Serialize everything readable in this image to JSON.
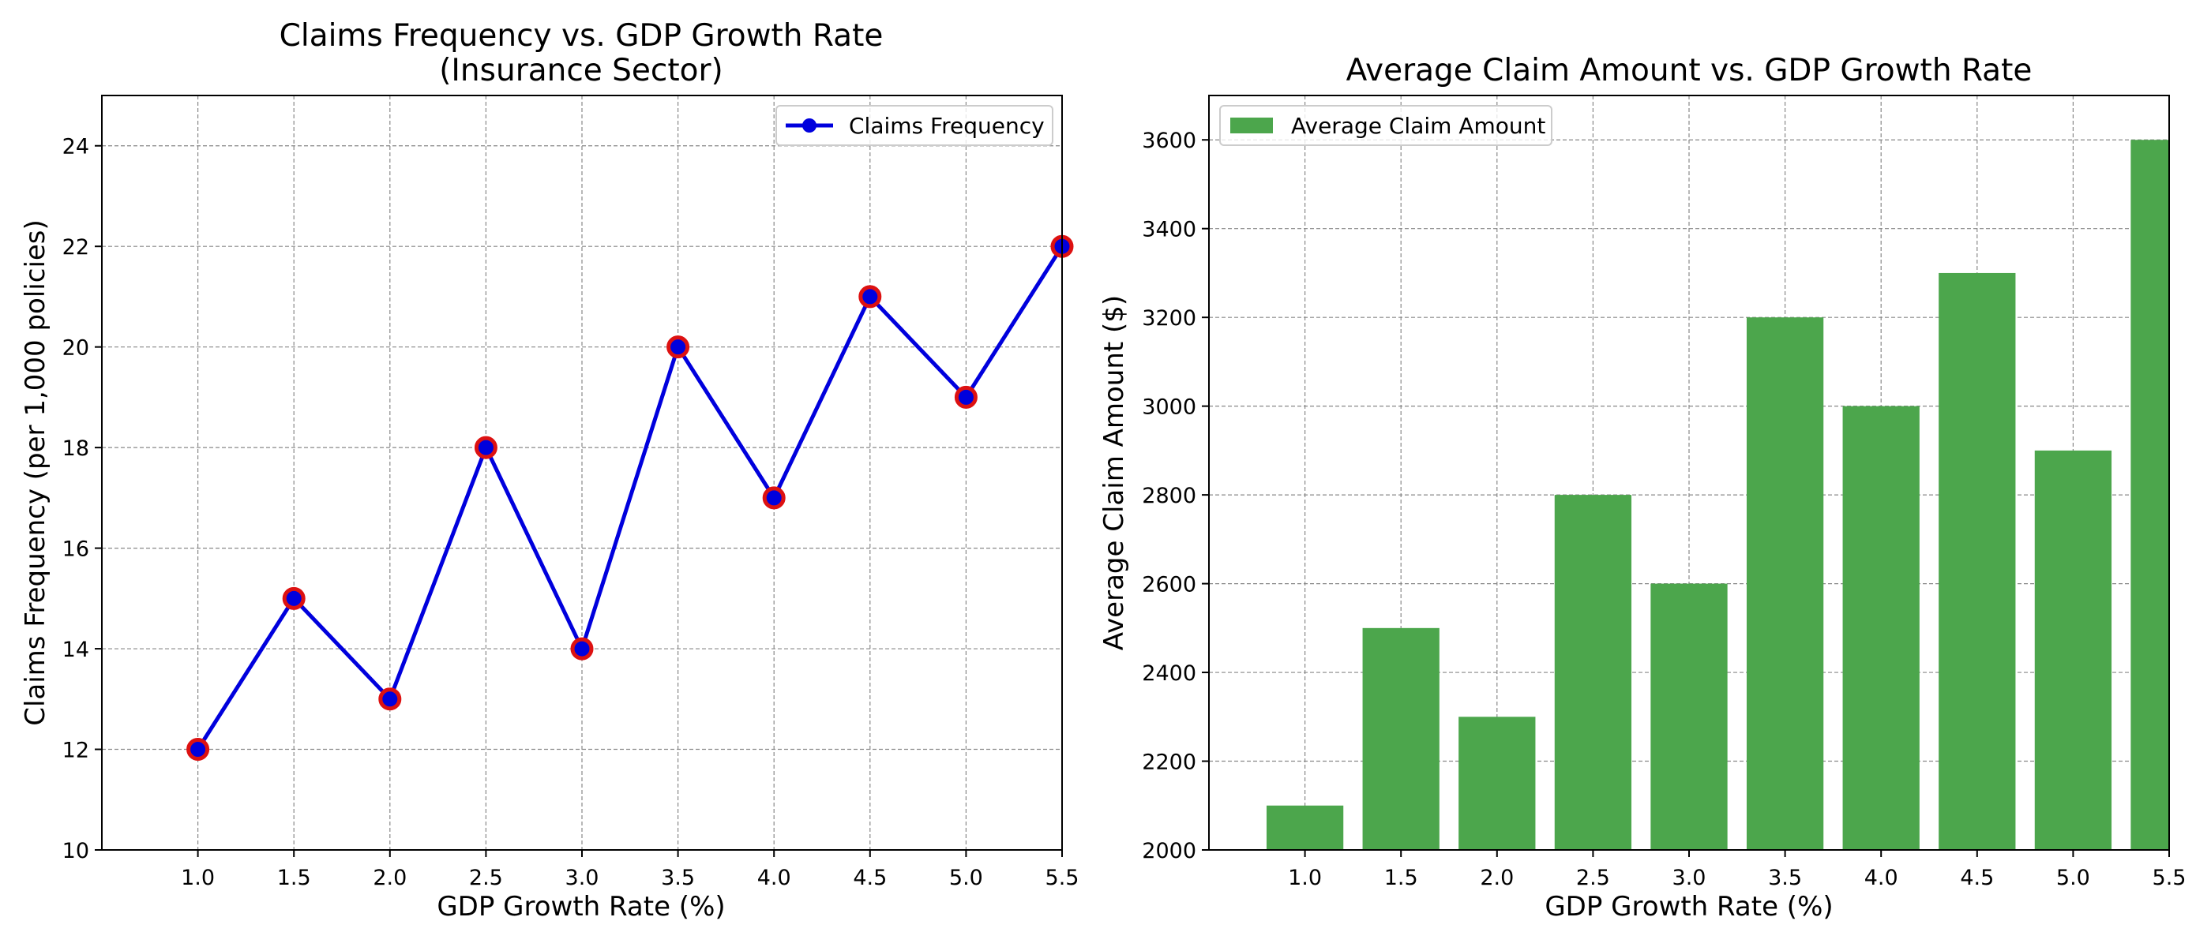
{
  "chart_data": [
    {
      "type": "line",
      "title": "Claims Frequency vs. GDP Growth Rate",
      "subtitle": "(Insurance Sector)",
      "xlabel": "GDP Growth Rate (%)",
      "ylabel": "Claims Frequency (per 1,000 policies)",
      "x": [
        1.0,
        1.5,
        2.0,
        2.5,
        3.0,
        3.5,
        4.0,
        4.5,
        5.0,
        5.5
      ],
      "x_tick_labels": [
        "1.0",
        "1.5",
        "2.0",
        "2.5",
        "3.0",
        "3.5",
        "4.0",
        "4.5",
        "5.0",
        "5.5"
      ],
      "series": [
        {
          "name": "Claims Frequency",
          "values": [
            12,
            15,
            13,
            18,
            14,
            20,
            17,
            21,
            19,
            22
          ],
          "line_color": "#0000dd",
          "marker_face_color": "#0000dd",
          "marker_edge_color": "#dd1111"
        }
      ],
      "xlim": [
        0.5,
        5.5
      ],
      "ylim": [
        10,
        25
      ],
      "y_ticks": [
        10,
        12,
        14,
        16,
        18,
        20,
        22,
        24
      ],
      "grid": true,
      "legend": "upper right"
    },
    {
      "type": "bar",
      "title": "Average Claim Amount vs. GDP Growth Rate",
      "xlabel": "GDP Growth Rate (%)",
      "ylabel": "Average Claim Amount ($)",
      "categories": [
        "1.0",
        "1.5",
        "2.0",
        "2.5",
        "3.0",
        "3.5",
        "4.0",
        "4.5",
        "5.0",
        "5.5"
      ],
      "x": [
        1.0,
        1.5,
        2.0,
        2.5,
        3.0,
        3.5,
        4.0,
        4.5,
        5.0,
        5.5
      ],
      "series": [
        {
          "name": "Average Claim Amount",
          "values": [
            2100,
            2500,
            2300,
            2800,
            2600,
            3200,
            3000,
            3300,
            2900,
            3600
          ],
          "color": "#4ca64c"
        }
      ],
      "xlim": [
        0.5,
        5.5
      ],
      "ylim": [
        2000,
        3700
      ],
      "y_ticks": [
        2000,
        2200,
        2400,
        2600,
        2800,
        3000,
        3200,
        3400,
        3600
      ],
      "grid": true,
      "legend": "upper left"
    }
  ]
}
